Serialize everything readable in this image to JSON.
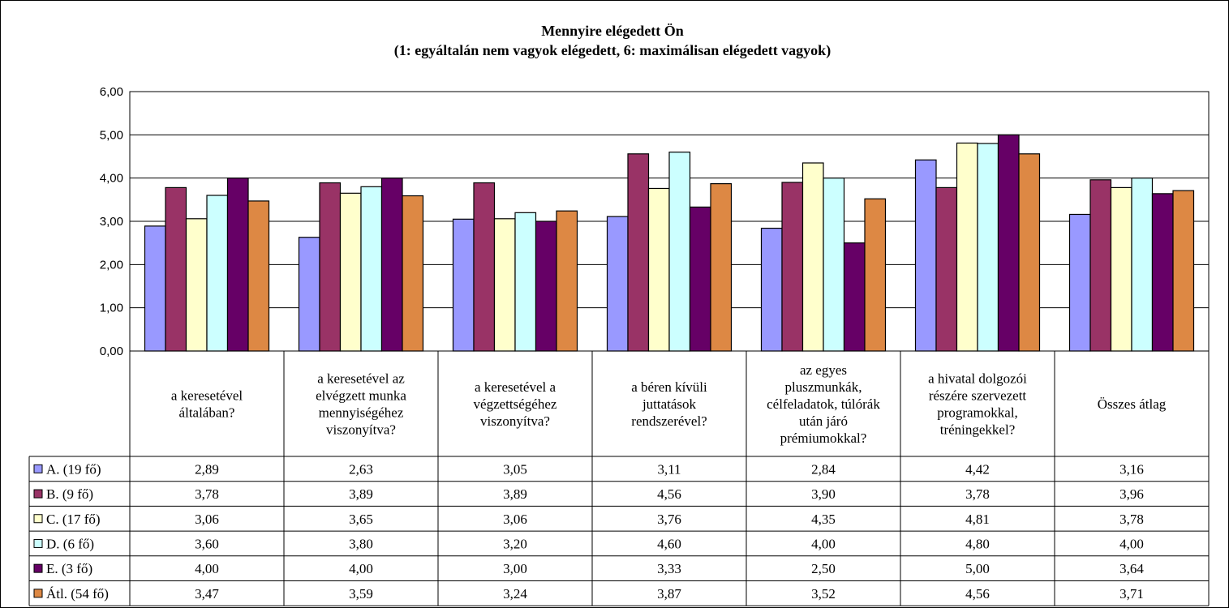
{
  "chart_data": {
    "type": "bar",
    "title": "Mennyire  elégedett Ön",
    "subtitle": "(1: egyáltalán nem vagyok elégedett, 6: maximálisan  elégedett vagyok)",
    "ylim": [
      0,
      6
    ],
    "y_ticks": [
      "0,00",
      "1,00",
      "2,00",
      "3,00",
      "4,00",
      "5,00",
      "6,00"
    ],
    "grid": true,
    "categories": [
      [
        "a keresetével",
        "általában?"
      ],
      [
        "a keresetével az",
        "elvégzett munka",
        "mennyiségéhez",
        "viszonyítva?"
      ],
      [
        "a keresetével a",
        "végzettségéhez",
        "viszonyítva?"
      ],
      [
        "a béren kívüli",
        "juttatások",
        "rendszerével?"
      ],
      [
        "az egyes",
        "pluszmunkák,",
        "célfeladatok, túlórák",
        "után járó",
        "prémiumokkal?"
      ],
      [
        "a hivatal dolgozói",
        "részére szervezett",
        "programokkal,",
        "tréningekkel?"
      ],
      [
        "Összes átlag"
      ]
    ],
    "series": [
      {
        "name": "A. (19 fő)",
        "color": "#9999ff",
        "values": [
          2.89,
          2.63,
          3.05,
          3.11,
          2.84,
          4.42,
          3.16
        ],
        "labels": [
          "2,89",
          "2,63",
          "3,05",
          "3,11",
          "2,84",
          "4,42",
          "3,16"
        ]
      },
      {
        "name": "B. (9 fő)",
        "color": "#993366",
        "values": [
          3.78,
          3.89,
          3.89,
          4.56,
          3.9,
          3.78,
          3.96
        ],
        "labels": [
          "3,78",
          "3,89",
          "3,89",
          "4,56",
          "3,90",
          "3,78",
          "3,96"
        ]
      },
      {
        "name": "C. (17 fő)",
        "color": "#ffffcc",
        "values": [
          3.06,
          3.65,
          3.06,
          3.76,
          4.35,
          4.81,
          3.78
        ],
        "labels": [
          "3,06",
          "3,65",
          "3,06",
          "3,76",
          "4,35",
          "4,81",
          "3,78"
        ]
      },
      {
        "name": "D. (6 fő)",
        "color": "#ccffff",
        "values": [
          3.6,
          3.8,
          3.2,
          4.6,
          4.0,
          4.8,
          4.0
        ],
        "labels": [
          "3,60",
          "3,80",
          "3,20",
          "4,60",
          "4,00",
          "4,80",
          "4,00"
        ]
      },
      {
        "name": "E. (3 fő)",
        "color": "#660066",
        "values": [
          4.0,
          4.0,
          3.0,
          3.33,
          2.5,
          5.0,
          3.64
        ],
        "labels": [
          "4,00",
          "4,00",
          "3,00",
          "3,33",
          "2,50",
          "5,00",
          "3,64"
        ]
      },
      {
        "name": "Átl. (54 fő)",
        "color": "#dd8844",
        "values": [
          3.47,
          3.59,
          3.24,
          3.87,
          3.52,
          4.56,
          3.71
        ],
        "labels": [
          "3,47",
          "3,59",
          "3,24",
          "3,87",
          "3,52",
          "4,56",
          "3,71"
        ]
      }
    ]
  }
}
